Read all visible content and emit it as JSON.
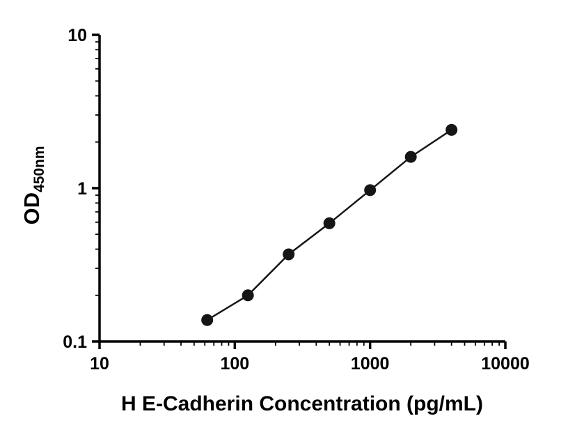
{
  "chart_data": {
    "type": "line",
    "title": "",
    "xlabel": "H E-Cadherin Concentration (pg/mL)",
    "ylabel": "OD",
    "ylabel_subscript": "450nm",
    "xscale": "log",
    "yscale": "log",
    "xlim": [
      10,
      10000
    ],
    "ylim": [
      0.1,
      10
    ],
    "x_ticks": [
      10,
      100,
      1000,
      10000
    ],
    "x_tick_labels": [
      "10",
      "100",
      "1000",
      "10000"
    ],
    "y_ticks": [
      0.1,
      1,
      10
    ],
    "y_tick_labels": [
      "0.1",
      "1",
      "10"
    ],
    "grid": false,
    "legend": null,
    "marker": "circle",
    "marker_color": "#161616",
    "line_color": "#161616",
    "axis_color": "#000000",
    "x": [
      62.5,
      125,
      250,
      500,
      1000,
      2000,
      4000
    ],
    "y": [
      0.138,
      0.2,
      0.37,
      0.59,
      0.97,
      1.6,
      2.4
    ]
  }
}
